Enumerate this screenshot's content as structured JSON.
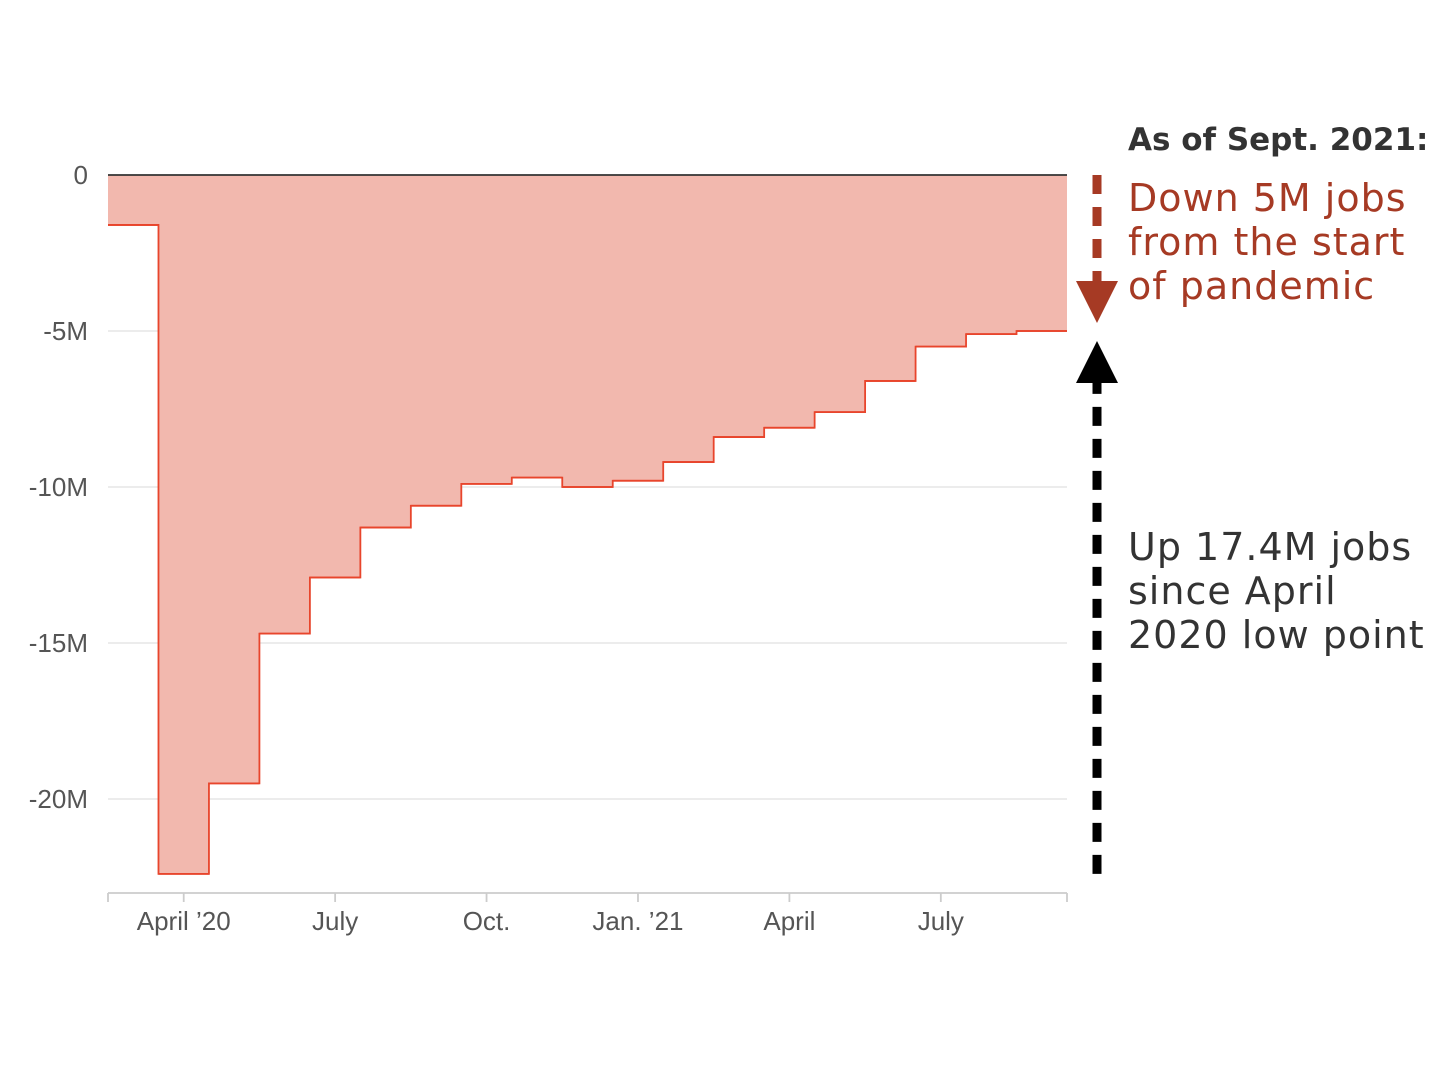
{
  "chart_data": {
    "type": "area",
    "step": true,
    "title": "",
    "xlabel": "",
    "ylabel": "",
    "ylim": [
      -22.5,
      0
    ],
    "y_ticks": [
      0,
      -5,
      -10,
      -15,
      -20
    ],
    "y_tick_labels": [
      "0",
      "-5M",
      "-10M",
      "-15M",
      "-20M"
    ],
    "x_tick_labels": [
      "April ’20",
      "July",
      "Oct.",
      "Jan. ’21",
      "April",
      "July"
    ],
    "x_tick_months": [
      "2020-04",
      "2020-07",
      "2020-10",
      "2021-01",
      "2021-04",
      "2021-07"
    ],
    "x": [
      "2020-03",
      "2020-04",
      "2020-05",
      "2020-06",
      "2020-07",
      "2020-08",
      "2020-09",
      "2020-10",
      "2020-11",
      "2020-12",
      "2021-01",
      "2021-02",
      "2021-03",
      "2021-04",
      "2021-05",
      "2021-06",
      "2021-07",
      "2021-08",
      "2021-09"
    ],
    "values": [
      -1.6,
      -22.4,
      -19.5,
      -14.7,
      -12.9,
      -11.3,
      -10.6,
      -9.9,
      -9.7,
      -10.0,
      -9.8,
      -9.2,
      -8.4,
      -8.1,
      -7.6,
      -6.6,
      -5.5,
      -5.1,
      -5.0
    ],
    "units": "jobs (millions)",
    "grid": true,
    "colors": {
      "area_fill": "#f2b8ae",
      "area_stroke": "#e8452c",
      "zero_line": "#333333",
      "grid": "#e6e6e6",
      "axis": "#cccccc",
      "down_arrow": "#a63a24",
      "up_arrow": "#000000"
    }
  },
  "annotations": {
    "header": "As of Sept. 2021:",
    "down_lines": [
      "Down 5M jobs",
      "from the start",
      "of pandemic"
    ],
    "up_lines": [
      "Up 17.4M jobs",
      "since April",
      "2020 low point"
    ]
  }
}
